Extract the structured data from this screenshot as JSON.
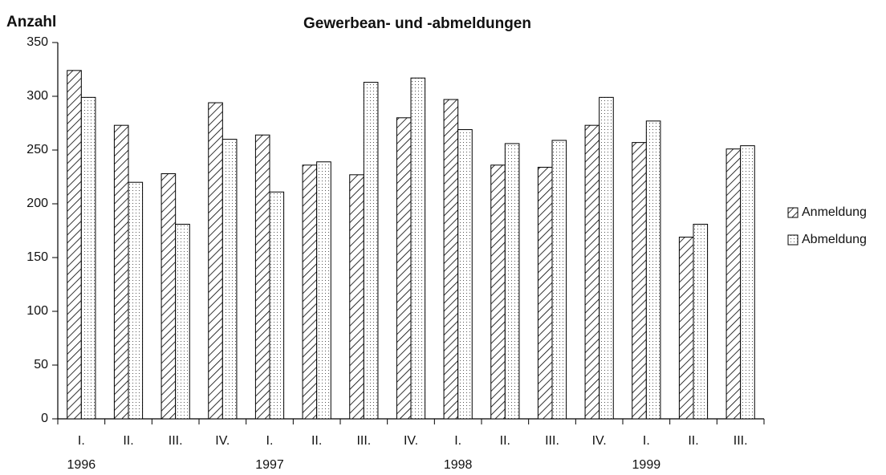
{
  "chart_data": {
    "type": "bar",
    "title": "Gewerbean- und -abmeldungen",
    "y_label": "Anzahl",
    "categories": [
      "I.",
      "II.",
      "III.",
      "IV.",
      "I.",
      "II.",
      "III.",
      "IV.",
      "I.",
      "II.",
      "III.",
      "IV.",
      "I.",
      "II.",
      "III."
    ],
    "category_years": [
      "1996",
      null,
      null,
      null,
      "1997",
      null,
      null,
      null,
      "1998",
      null,
      null,
      null,
      "1999",
      null,
      null
    ],
    "series": [
      {
        "name": "Anmeldung",
        "color": "#000000",
        "pattern": "hatch",
        "values": [
          324,
          273,
          228,
          294,
          264,
          236,
          227,
          280,
          297,
          236,
          234,
          273,
          257,
          169,
          251
        ]
      },
      {
        "name": "Abmeldung",
        "color": "#000000",
        "pattern": "dots",
        "values": [
          299,
          220,
          181,
          260,
          211,
          239,
          313,
          317,
          269,
          256,
          259,
          299,
          277,
          181,
          254
        ]
      }
    ],
    "ylim": [
      0,
      350
    ],
    "yticks": [
      0,
      50,
      100,
      150,
      200,
      250,
      300,
      350
    ],
    "grid": false,
    "legend": "right"
  }
}
